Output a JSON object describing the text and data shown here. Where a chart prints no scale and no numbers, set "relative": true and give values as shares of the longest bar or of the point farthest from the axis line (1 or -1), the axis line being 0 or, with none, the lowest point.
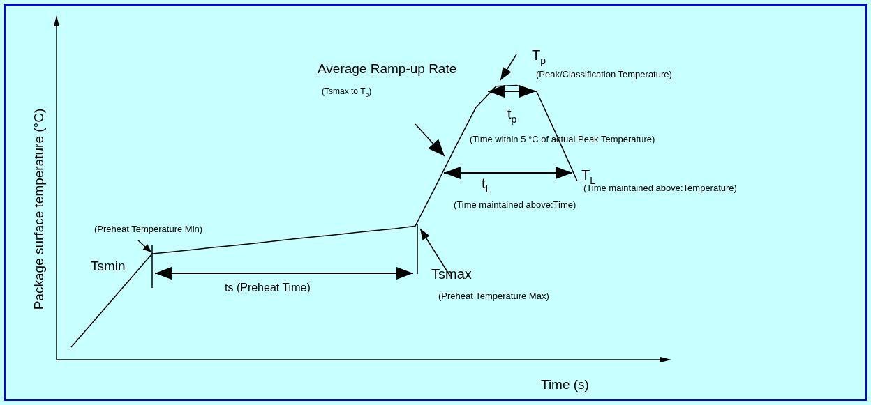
{
  "chart_data": {
    "type": "line",
    "relative": true,
    "xlabel": "Time (s)",
    "ylabel": "Package surface temperature (°C)",
    "categories": [
      null,
      null,
      null,
      null,
      null,
      null,
      null,
      null,
      null,
      null,
      null,
      null,
      null,
      null,
      null,
      null,
      null,
      null,
      null,
      null,
      null,
      null,
      null,
      null,
      null,
      null
    ],
    "values": [
      0.046,
      0.131,
      0.216,
      0.301,
      0.386,
      0.393,
      0.401,
      0.409,
      0.416,
      0.424,
      0.432,
      0.44,
      0.448,
      0.455,
      0.463,
      0.471,
      0.478,
      0.487,
      0.631,
      0.778,
      0.92,
      0.997,
      1,
      0.977,
      0.816,
      0.651
    ],
    "color": "#000000",
    "marker": "none",
    "line_style": "solid",
    "annotations": [
      "Tsmin",
      "(Preheat Temperature Min)",
      "ts  (Preheat Time)",
      "Tsmax",
      "(Preheat Temperature Max)",
      "Average Ramp-up Rate",
      "(Tsmax to T$_{p}$)",
      "T$_{p}$",
      "(Peak/Classification Temperature)",
      "t$_{p}$",
      "(Time within  5 °C of actual Peak Temperature)",
      "T$_{L}$",
      "(Time maintained above:Temperature)",
      "t$_{L}$",
      "(Time maintained above:Time)"
    ]
  }
}
